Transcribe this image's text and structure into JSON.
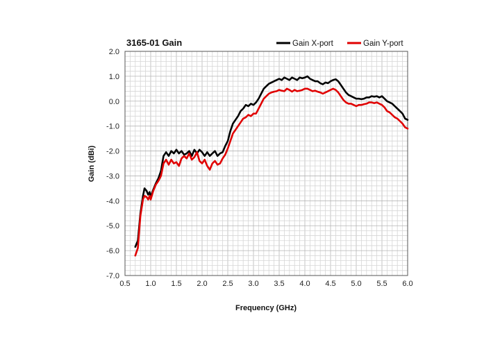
{
  "chart_data": {
    "type": "line",
    "title": "3165-01 Gain",
    "xlabel": "Frequency (GHz)",
    "ylabel": "Gain (dBi)",
    "xlim": [
      0.5,
      6.0
    ],
    "ylim": [
      -7.0,
      2.0
    ],
    "x_ticks": [
      "0.5",
      "1.0",
      "1.5",
      "2.0",
      "2.5",
      "3.0",
      "3.5",
      "4.0",
      "4.5",
      "5.0",
      "5.5",
      "6.0"
    ],
    "y_ticks": [
      "2.0",
      "1.0",
      "0.0",
      "-1.0",
      "-2.0",
      "-3.0",
      "-4.0",
      "-5.0",
      "-6.0",
      "-7.0"
    ],
    "grid": true,
    "legend_position": "top-right",
    "series": [
      {
        "name": "Gain X-port",
        "color": "#000000",
        "points": [
          [
            0.7,
            -5.85
          ],
          [
            0.75,
            -5.6
          ],
          [
            0.8,
            -4.5
          ],
          [
            0.85,
            -3.8
          ],
          [
            0.88,
            -3.5
          ],
          [
            0.92,
            -3.6
          ],
          [
            0.95,
            -3.75
          ],
          [
            0.98,
            -3.65
          ],
          [
            1.0,
            -3.85
          ],
          [
            1.05,
            -3.55
          ],
          [
            1.1,
            -3.3
          ],
          [
            1.15,
            -3.1
          ],
          [
            1.2,
            -2.8
          ],
          [
            1.25,
            -2.2
          ],
          [
            1.3,
            -2.05
          ],
          [
            1.35,
            -2.2
          ],
          [
            1.4,
            -2.0
          ],
          [
            1.45,
            -2.1
          ],
          [
            1.5,
            -1.95
          ],
          [
            1.55,
            -2.1
          ],
          [
            1.6,
            -2.0
          ],
          [
            1.65,
            -2.15
          ],
          [
            1.7,
            -2.1
          ],
          [
            1.75,
            -2.0
          ],
          [
            1.8,
            -2.2
          ],
          [
            1.85,
            -1.95
          ],
          [
            1.9,
            -2.1
          ],
          [
            1.95,
            -1.95
          ],
          [
            2.0,
            -2.05
          ],
          [
            2.05,
            -2.2
          ],
          [
            2.1,
            -2.05
          ],
          [
            2.15,
            -2.2
          ],
          [
            2.2,
            -2.1
          ],
          [
            2.25,
            -2.0
          ],
          [
            2.3,
            -2.2
          ],
          [
            2.35,
            -2.1
          ],
          [
            2.4,
            -2.05
          ],
          [
            2.45,
            -1.8
          ],
          [
            2.5,
            -1.6
          ],
          [
            2.55,
            -1.2
          ],
          [
            2.6,
            -0.9
          ],
          [
            2.65,
            -0.75
          ],
          [
            2.7,
            -0.6
          ],
          [
            2.75,
            -0.4
          ],
          [
            2.8,
            -0.3
          ],
          [
            2.85,
            -0.15
          ],
          [
            2.9,
            -0.2
          ],
          [
            2.95,
            -0.1
          ],
          [
            3.0,
            -0.15
          ],
          [
            3.05,
            -0.05
          ],
          [
            3.1,
            0.1
          ],
          [
            3.15,
            0.3
          ],
          [
            3.2,
            0.5
          ],
          [
            3.25,
            0.6
          ],
          [
            3.3,
            0.7
          ],
          [
            3.35,
            0.75
          ],
          [
            3.4,
            0.8
          ],
          [
            3.45,
            0.85
          ],
          [
            3.5,
            0.9
          ],
          [
            3.55,
            0.85
          ],
          [
            3.6,
            0.95
          ],
          [
            3.65,
            0.9
          ],
          [
            3.7,
            0.85
          ],
          [
            3.75,
            0.95
          ],
          [
            3.8,
            0.9
          ],
          [
            3.85,
            0.85
          ],
          [
            3.9,
            0.95
          ],
          [
            3.95,
            0.92
          ],
          [
            4.0,
            0.95
          ],
          [
            4.05,
            1.0
          ],
          [
            4.1,
            0.9
          ],
          [
            4.15,
            0.85
          ],
          [
            4.2,
            0.8
          ],
          [
            4.25,
            0.8
          ],
          [
            4.3,
            0.72
          ],
          [
            4.35,
            0.68
          ],
          [
            4.4,
            0.75
          ],
          [
            4.45,
            0.72
          ],
          [
            4.5,
            0.8
          ],
          [
            4.55,
            0.85
          ],
          [
            4.6,
            0.88
          ],
          [
            4.65,
            0.8
          ],
          [
            4.7,
            0.65
          ],
          [
            4.75,
            0.5
          ],
          [
            4.8,
            0.35
          ],
          [
            4.85,
            0.25
          ],
          [
            4.9,
            0.2
          ],
          [
            4.95,
            0.15
          ],
          [
            5.0,
            0.1
          ],
          [
            5.05,
            0.1
          ],
          [
            5.1,
            0.08
          ],
          [
            5.15,
            0.1
          ],
          [
            5.2,
            0.15
          ],
          [
            5.25,
            0.15
          ],
          [
            5.3,
            0.2
          ],
          [
            5.35,
            0.18
          ],
          [
            5.4,
            0.2
          ],
          [
            5.45,
            0.15
          ],
          [
            5.5,
            0.2
          ],
          [
            5.55,
            0.1
          ],
          [
            5.6,
            0.0
          ],
          [
            5.65,
            -0.05
          ],
          [
            5.7,
            -0.1
          ],
          [
            5.75,
            -0.2
          ],
          [
            5.8,
            -0.3
          ],
          [
            5.85,
            -0.4
          ],
          [
            5.9,
            -0.5
          ],
          [
            5.95,
            -0.7
          ],
          [
            6.0,
            -0.75
          ]
        ]
      },
      {
        "name": "Gain Y-port",
        "color": "#e00000",
        "points": [
          [
            0.7,
            -6.2
          ],
          [
            0.75,
            -5.9
          ],
          [
            0.8,
            -4.6
          ],
          [
            0.85,
            -3.95
          ],
          [
            0.88,
            -3.8
          ],
          [
            0.92,
            -3.85
          ],
          [
            0.95,
            -3.95
          ],
          [
            0.98,
            -3.8
          ],
          [
            1.0,
            -3.95
          ],
          [
            1.05,
            -3.6
          ],
          [
            1.1,
            -3.35
          ],
          [
            1.15,
            -3.2
          ],
          [
            1.2,
            -3.0
          ],
          [
            1.25,
            -2.5
          ],
          [
            1.3,
            -2.35
          ],
          [
            1.35,
            -2.55
          ],
          [
            1.4,
            -2.35
          ],
          [
            1.45,
            -2.5
          ],
          [
            1.5,
            -2.45
          ],
          [
            1.55,
            -2.6
          ],
          [
            1.6,
            -2.3
          ],
          [
            1.65,
            -2.2
          ],
          [
            1.7,
            -2.3
          ],
          [
            1.75,
            -2.1
          ],
          [
            1.8,
            -2.35
          ],
          [
            1.85,
            -2.25
          ],
          [
            1.9,
            -2.05
          ],
          [
            1.95,
            -2.4
          ],
          [
            2.0,
            -2.5
          ],
          [
            2.05,
            -2.35
          ],
          [
            2.1,
            -2.6
          ],
          [
            2.15,
            -2.75
          ],
          [
            2.2,
            -2.5
          ],
          [
            2.25,
            -2.4
          ],
          [
            2.3,
            -2.55
          ],
          [
            2.35,
            -2.5
          ],
          [
            2.4,
            -2.3
          ],
          [
            2.45,
            -2.15
          ],
          [
            2.5,
            -1.9
          ],
          [
            2.55,
            -1.6
          ],
          [
            2.6,
            -1.3
          ],
          [
            2.65,
            -1.15
          ],
          [
            2.7,
            -1.0
          ],
          [
            2.75,
            -0.85
          ],
          [
            2.8,
            -0.7
          ],
          [
            2.85,
            -0.65
          ],
          [
            2.9,
            -0.55
          ],
          [
            2.95,
            -0.6
          ],
          [
            3.0,
            -0.5
          ],
          [
            3.05,
            -0.5
          ],
          [
            3.1,
            -0.3
          ],
          [
            3.15,
            -0.1
          ],
          [
            3.2,
            0.1
          ],
          [
            3.25,
            0.2
          ],
          [
            3.3,
            0.3
          ],
          [
            3.35,
            0.35
          ],
          [
            3.4,
            0.38
          ],
          [
            3.45,
            0.4
          ],
          [
            3.5,
            0.45
          ],
          [
            3.55,
            0.42
          ],
          [
            3.6,
            0.4
          ],
          [
            3.65,
            0.5
          ],
          [
            3.7,
            0.45
          ],
          [
            3.75,
            0.38
          ],
          [
            3.8,
            0.45
          ],
          [
            3.85,
            0.4
          ],
          [
            3.9,
            0.42
          ],
          [
            3.95,
            0.45
          ],
          [
            4.0,
            0.5
          ],
          [
            4.05,
            0.5
          ],
          [
            4.1,
            0.45
          ],
          [
            4.15,
            0.4
          ],
          [
            4.2,
            0.42
          ],
          [
            4.25,
            0.38
          ],
          [
            4.3,
            0.35
          ],
          [
            4.35,
            0.3
          ],
          [
            4.4,
            0.35
          ],
          [
            4.45,
            0.4
          ],
          [
            4.5,
            0.45
          ],
          [
            4.55,
            0.5
          ],
          [
            4.6,
            0.45
          ],
          [
            4.65,
            0.35
          ],
          [
            4.7,
            0.2
          ],
          [
            4.75,
            0.05
          ],
          [
            4.8,
            -0.05
          ],
          [
            4.85,
            -0.1
          ],
          [
            4.9,
            -0.1
          ],
          [
            4.95,
            -0.15
          ],
          [
            5.0,
            -0.2
          ],
          [
            5.05,
            -0.15
          ],
          [
            5.1,
            -0.15
          ],
          [
            5.15,
            -0.12
          ],
          [
            5.2,
            -0.1
          ],
          [
            5.25,
            -0.05
          ],
          [
            5.3,
            -0.05
          ],
          [
            5.35,
            -0.08
          ],
          [
            5.4,
            -0.05
          ],
          [
            5.45,
            -0.1
          ],
          [
            5.5,
            -0.15
          ],
          [
            5.55,
            -0.25
          ],
          [
            5.6,
            -0.4
          ],
          [
            5.65,
            -0.45
          ],
          [
            5.7,
            -0.55
          ],
          [
            5.75,
            -0.65
          ],
          [
            5.8,
            -0.7
          ],
          [
            5.85,
            -0.8
          ],
          [
            5.9,
            -0.9
          ],
          [
            5.95,
            -1.05
          ],
          [
            6.0,
            -1.1
          ]
        ]
      }
    ]
  }
}
